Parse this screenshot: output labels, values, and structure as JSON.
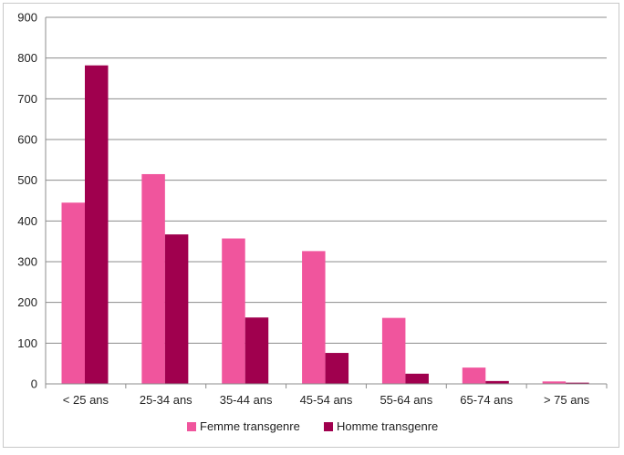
{
  "chart_data": {
    "type": "bar",
    "categories": [
      "< 25 ans",
      "25-34 ans",
      "35-44 ans",
      "45-54 ans",
      "55-64 ans",
      "65-74 ans",
      "> 75 ans"
    ],
    "series": [
      {
        "name": "Femme transgenre",
        "color": "#f0559d",
        "values": [
          445,
          515,
          357,
          326,
          162,
          40,
          6
        ]
      },
      {
        "name": "Homme transgenre",
        "color": "#a0004e",
        "values": [
          782,
          367,
          163,
          76,
          25,
          7,
          3
        ]
      }
    ],
    "ylim": [
      0,
      900
    ],
    "yticks": [
      0,
      100,
      200,
      300,
      400,
      500,
      600,
      700,
      800,
      900
    ],
    "grid": true,
    "legend_position": "bottom",
    "title": "",
    "xlabel": "",
    "ylabel": ""
  }
}
